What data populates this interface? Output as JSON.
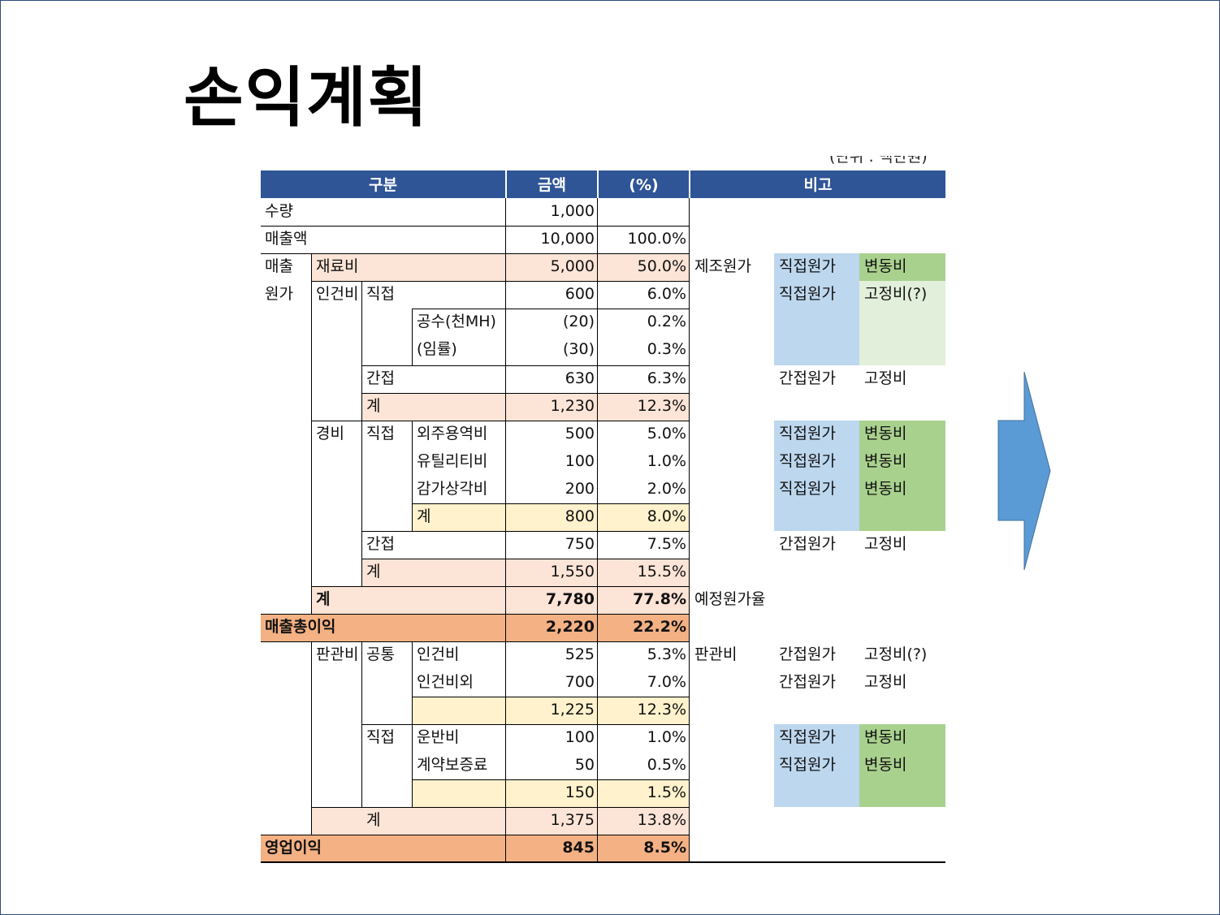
{
  "slide": {
    "title": "손익계획",
    "cut_off_note": "(단위 : 백만원)"
  },
  "colors": {
    "header": "#2f5597",
    "peach": "#fce4d6",
    "orange": "#f4b183",
    "yellow": "#fff2cc",
    "blue": "#bdd7ee",
    "green": "#a9d18e",
    "light_green": "#e2efda",
    "arrow": "#5b9bd5"
  },
  "table": {
    "headers": {
      "category": "구분",
      "amount": "금액",
      "percent": "(%)",
      "remarks": "비고"
    },
    "rows": {
      "quantity": {
        "label": "수량",
        "amount": "1,000",
        "percent": ""
      },
      "sales": {
        "label": "매출액",
        "amount": "10,000",
        "percent": "100.0%"
      },
      "cogs_label_1": "매출",
      "cogs_label_2": "원가",
      "material": {
        "label": "재료비",
        "amount": "5,000",
        "percent": "50.0%"
      },
      "labor_label": "인건비",
      "labor_direct": {
        "label": "직접",
        "amount": "600",
        "percent": "6.0%"
      },
      "manhours": {
        "label": "공수(천MH)",
        "amount": "(20)",
        "percent": "0.2%"
      },
      "wage_rate": {
        "label": "(임률)",
        "amount": "(30)",
        "percent": "0.3%"
      },
      "labor_indirect": {
        "label": "간접",
        "amount": "630",
        "percent": "6.3%"
      },
      "labor_total": {
        "label": "계",
        "amount": "1,230",
        "percent": "12.3%"
      },
      "expense_label": "경비",
      "expense_direct_label": "직접",
      "outsourcing": {
        "label": "외주용역비",
        "amount": "500",
        "percent": "5.0%"
      },
      "utility": {
        "label": "유틸리티비",
        "amount": "100",
        "percent": "1.0%"
      },
      "depreciation": {
        "label": "감가상각비",
        "amount": "200",
        "percent": "2.0%"
      },
      "expense_direct_total": {
        "label": "계",
        "amount": "800",
        "percent": "8.0%"
      },
      "expense_indirect": {
        "label": "간접",
        "amount": "750",
        "percent": "7.5%"
      },
      "expense_total": {
        "label": "계",
        "amount": "1,550",
        "percent": "15.5%"
      },
      "cogs_total": {
        "label": "계",
        "amount": "7,780",
        "percent": "77.8%"
      },
      "gross_profit": {
        "label": "매출총이익",
        "amount": "2,220",
        "percent": "22.2%"
      },
      "sga_label": "판관비",
      "common_label": "공통",
      "sga_labor": {
        "label": "인건비",
        "amount": "525",
        "percent": "5.3%"
      },
      "sga_nonlabor": {
        "label": "인건비외",
        "amount": "700",
        "percent": "7.0%"
      },
      "common_total": {
        "label": "",
        "amount": "1,225",
        "percent": "12.3%"
      },
      "sga_direct_label": "직접",
      "freight": {
        "label": "운반비",
        "amount": "100",
        "percent": "1.0%"
      },
      "guarantee": {
        "label": "계약보증료",
        "amount": "50",
        "percent": "0.5%"
      },
      "sga_direct_total": {
        "label": "",
        "amount": "150",
        "percent": "1.5%"
      },
      "sga_total": {
        "label": "계",
        "amount": "1,375",
        "percent": "13.8%"
      },
      "operating_profit": {
        "label": "영업이익",
        "amount": "845",
        "percent": "8.5%"
      }
    },
    "remarks": {
      "manufacturing_cost": "제조원가",
      "expected_cost_ratio": "예정원가율",
      "sga": "판관비",
      "direct_cost": "직접원가",
      "indirect_cost": "간접원가",
      "variable_cost": "변동비",
      "fixed_cost": "고정비",
      "fixed_cost_q": "고정비(?)"
    }
  }
}
